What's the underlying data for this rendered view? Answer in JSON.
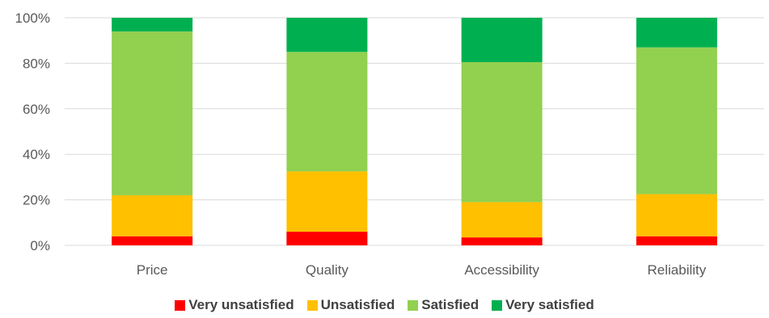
{
  "chart_data": {
    "type": "bar",
    "stacked": true,
    "categories": [
      "Price",
      "Quality",
      "Accessibility",
      "Reliability"
    ],
    "series": [
      {
        "name": "Very unsatisfied",
        "color": "#ff0000",
        "values": [
          4,
          6,
          3.5,
          4
        ]
      },
      {
        "name": "Unsatisfied",
        "color": "#ffc000",
        "values": [
          18,
          26.5,
          15.5,
          18.5
        ]
      },
      {
        "name": "Satisfied",
        "color": "#92d050",
        "values": [
          72,
          52.5,
          61.5,
          64.5
        ]
      },
      {
        "name": "Very satisfied",
        "color": "#00b050",
        "values": [
          6,
          15,
          19.5,
          13
        ]
      }
    ],
    "ylim": [
      0,
      100
    ],
    "yticks": [
      "0%",
      "20%",
      "40%",
      "60%",
      "80%",
      "100%"
    ],
    "grid": true,
    "legend_position": "bottom"
  }
}
